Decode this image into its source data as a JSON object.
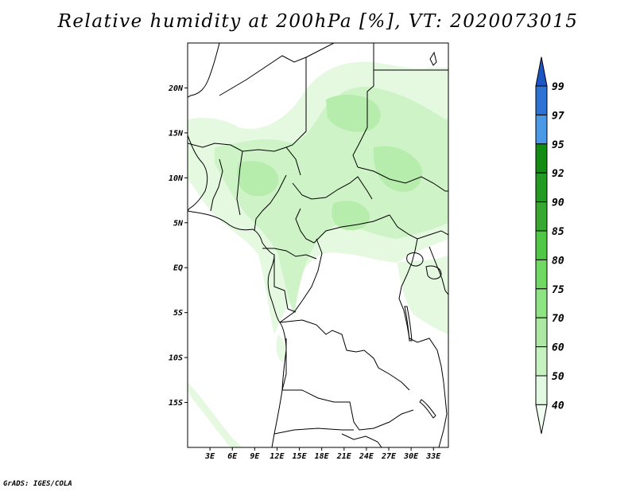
{
  "title": "Relative humidity at 200hPa [%], VT: 2020073015",
  "credit": "GrADS: IGES/COLA",
  "map": {
    "lat_labels": [
      "20N",
      "15N",
      "10N",
      "5N",
      "EQ",
      "5S",
      "10S",
      "15S"
    ],
    "lon_labels": [
      "3E",
      "6E",
      "9E",
      "12E",
      "15E",
      "18E",
      "21E",
      "24E",
      "27E",
      "30E",
      "33E"
    ],
    "lat_range": [
      -20,
      25
    ],
    "lon_range": [
      0,
      35
    ]
  },
  "colorbar": {
    "levels": [
      "40",
      "50",
      "60",
      "70",
      "75",
      "80",
      "85",
      "90",
      "92",
      "95",
      "97",
      "99"
    ],
    "colors": [
      "#f0fff0",
      "#e0f9e0",
      "#c6f2c0",
      "#aee9a3",
      "#8ee383",
      "#6fd963",
      "#50c846",
      "#37a830",
      "#239a22",
      "#138c13",
      "#4a98e6",
      "#2f72d6",
      "#1c56c4"
    ]
  }
}
